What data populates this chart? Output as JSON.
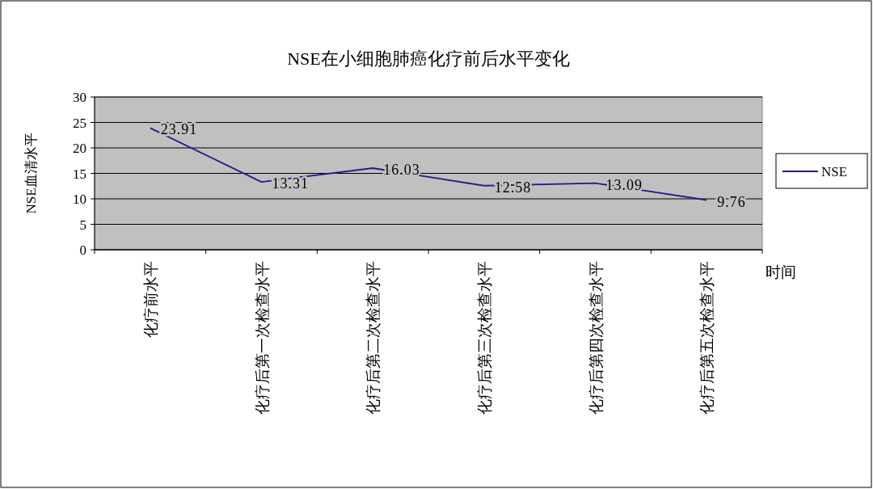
{
  "chart_data": {
    "type": "line",
    "title": "NSE在小细胞肺癌化疗前后水平变化",
    "xlabel": "时间",
    "ylabel": "NSE血清水平",
    "categories": [
      "化疗前水平",
      "化疗后第一次检查水平",
      "化疗后第二次检查水平",
      "化疗后第三次检查水平",
      "化疗后第四次检查水平",
      "化疗后第五次检查水平"
    ],
    "series": [
      {
        "name": "NSE",
        "color": "#1f1f8a",
        "values": [
          23.91,
          13.31,
          16.03,
          12.58,
          13.09,
          9.76
        ]
      }
    ],
    "ylim": [
      0,
      30
    ],
    "yticks": [
      0,
      5,
      10,
      15,
      20,
      25,
      30
    ],
    "grid": "y",
    "legend": "right",
    "data_labels": true,
    "marker": "none"
  }
}
